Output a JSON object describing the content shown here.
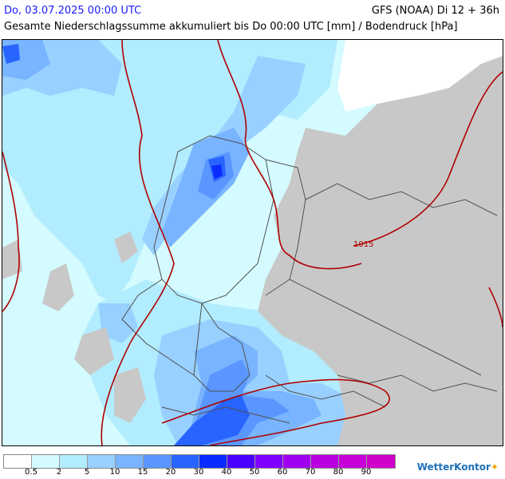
{
  "header": {
    "date": "Do, 03.07.2025 00:00 UTC",
    "model": "GFS (NOAA) Di 12 + 36h",
    "title": "Gesamte Niederschlagssumme akkumuliert bis Do 00:00 UTC [mm] / Bodendruck [hPa]"
  },
  "map": {
    "isobar_label": "1015",
    "colors": {
      "land": "#c8c8c8",
      "sea": "#ffffff",
      "isobar": "#b00000",
      "border": "#505050"
    }
  },
  "legend": {
    "colors": [
      "#ffffff",
      "#d4fbff",
      "#b2ecff",
      "#98d0ff",
      "#78b4ff",
      "#5a96ff",
      "#2864ff",
      "#0a2aff",
      "#4a00ff",
      "#8000ff",
      "#a000f0",
      "#b800e0",
      "#c800d8",
      "#d000c8"
    ],
    "labels": [
      "0.5",
      "2",
      "5",
      "10",
      "15",
      "20",
      "30",
      "40",
      "50",
      "60",
      "70",
      "80",
      "90"
    ]
  },
  "brand": {
    "name": "WetterKontor"
  }
}
